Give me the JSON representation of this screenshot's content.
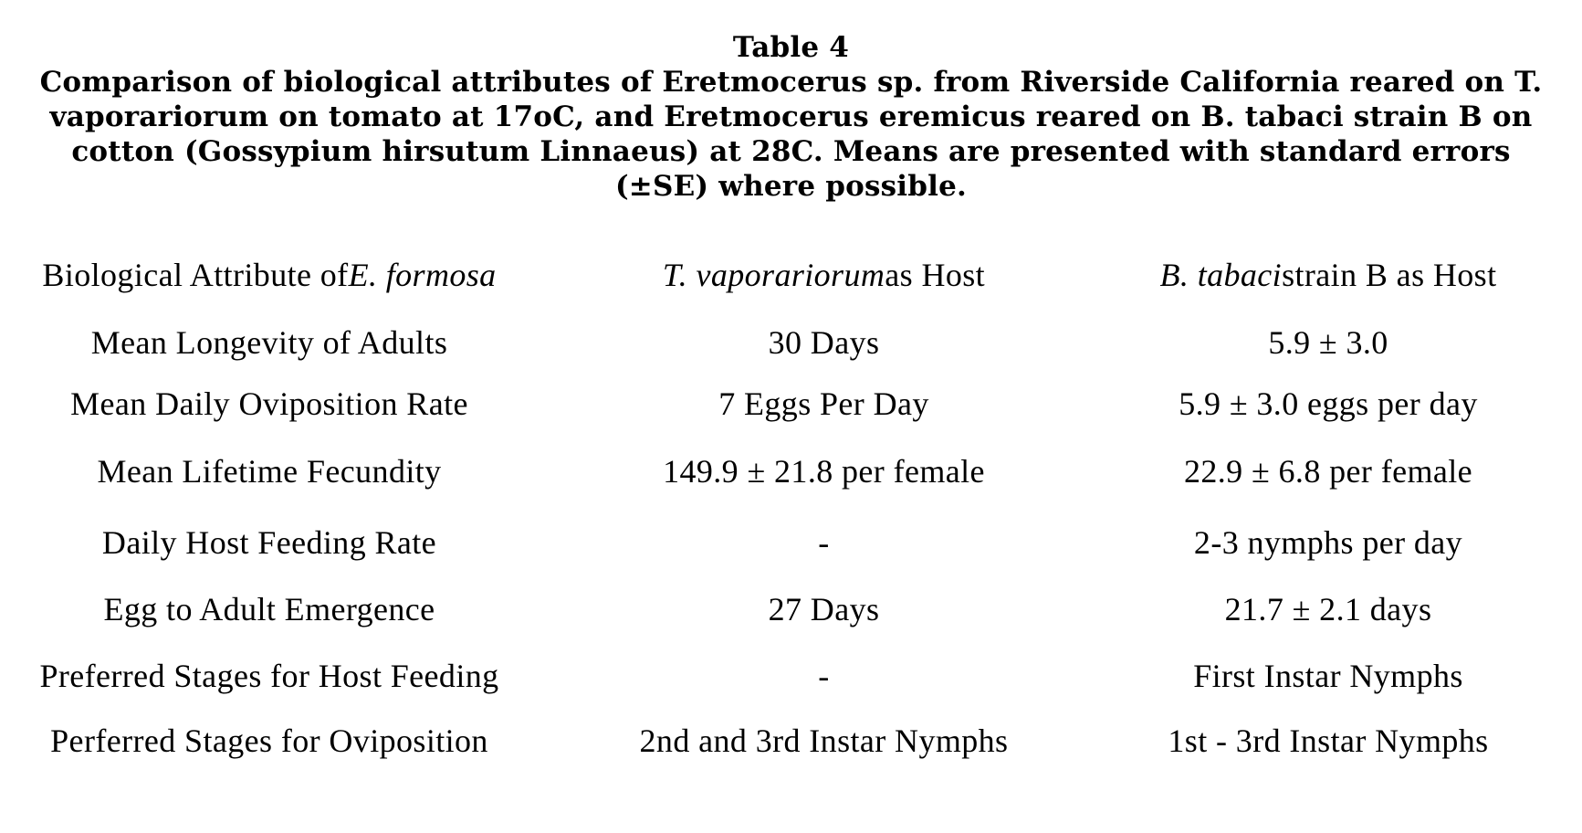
{
  "title": {
    "heading": "Table 4",
    "lines": [
      "Comparison of biological attributes of Eretmocerus sp. from Riverside California reared on T.",
      "vaporariorum on tomato at 17oC, and Eretmocerus eremicus reared on B. tabaci strain B on",
      "cotton (Gossypium hirsutum Linnaeus) at 28C. Means are presented with standard errors",
      "(±SE) where possible."
    ]
  },
  "table": {
    "header": {
      "attribute_text": "Biological Attribute of ",
      "attribute_species": "E. formosa",
      "host1_species": "T. vaporariorum",
      "host1_text": " as Host",
      "host2_species": "B. tabaci",
      "host2_text": " strain B as Host"
    },
    "rows": [
      {
        "attribute": "Mean Longevity of Adults",
        "t_vaporariorum": "30 Days",
        "b_tabaci": "5.9 ± 3.0"
      },
      {
        "attribute": "Mean Daily Oviposition Rate",
        "t_vaporariorum": "7 Eggs Per Day",
        "b_tabaci": "5.9 ± 3.0 eggs per day"
      },
      {
        "attribute": "Mean Lifetime Fecundity",
        "t_vaporariorum": "149.9 ± 21.8 per female",
        "b_tabaci": "22.9 ± 6.8 per female"
      },
      {
        "attribute": "Daily Host Feeding Rate",
        "t_vaporariorum": "-",
        "b_tabaci": "2-3 nymphs per day"
      },
      {
        "attribute": "Egg to Adult Emergence",
        "t_vaporariorum": "27 Days",
        "b_tabaci": "21.7 ± 2.1 days"
      },
      {
        "attribute": "Preferred Stages for Host Feeding",
        "t_vaporariorum": "-",
        "b_tabaci": "First Instar Nymphs"
      },
      {
        "attribute": "Perferred Stages for Oviposition",
        "t_vaporariorum": "2nd and 3rd Instar Nymphs",
        "b_tabaci": "1st - 3rd Instar Nymphs"
      }
    ]
  },
  "colors": {
    "text": "#000000",
    "background": "#ffffff"
  }
}
